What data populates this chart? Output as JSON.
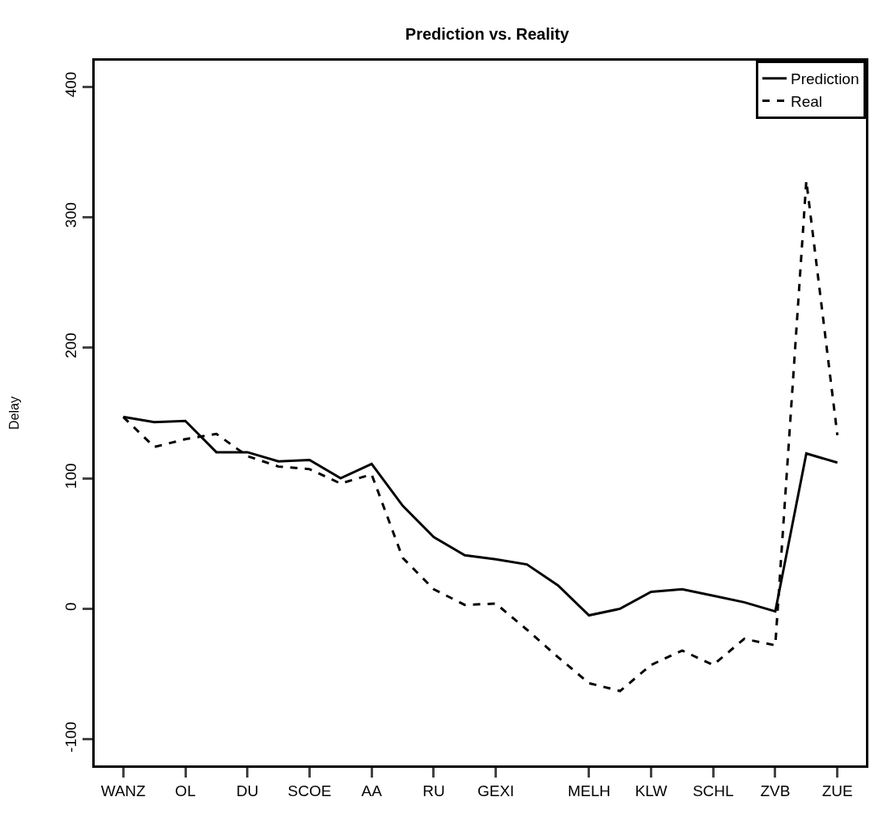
{
  "chart_data": {
    "type": "line",
    "title": "Prediction vs. Reality",
    "ylabel": "Delay",
    "categories": [
      "WANZ",
      null,
      "OL",
      null,
      "DU",
      null,
      "SCOE",
      null,
      "AA",
      null,
      "RU",
      null,
      "GEXI",
      null,
      null,
      "MELH",
      null,
      "KLW",
      null,
      "SCHL",
      null,
      "ZVB",
      null,
      "ZUE"
    ],
    "series": [
      {
        "name": "Prediction",
        "color": "#000000",
        "line_style": "solid",
        "values": [
          147,
          143,
          144,
          120,
          120,
          113,
          114,
          100,
          111,
          79,
          55,
          41,
          38,
          34,
          18,
          -5,
          0,
          13,
          15,
          10,
          5,
          -2,
          119,
          112
        ]
      },
      {
        "name": "Real",
        "color": "#000000",
        "line_style": "dashed",
        "values": [
          147,
          124,
          130,
          134,
          117,
          109,
          107,
          96,
          103,
          39,
          15,
          3,
          4,
          -16,
          -37,
          -57,
          -63,
          -43,
          -32,
          -43,
          -23,
          -28,
          328,
          133
        ]
      }
    ],
    "ylim": [
      -120,
      420
    ],
    "yticks": [
      -100,
      0,
      100,
      200,
      300,
      400
    ],
    "legend": "top right",
    "marker": "none"
  }
}
